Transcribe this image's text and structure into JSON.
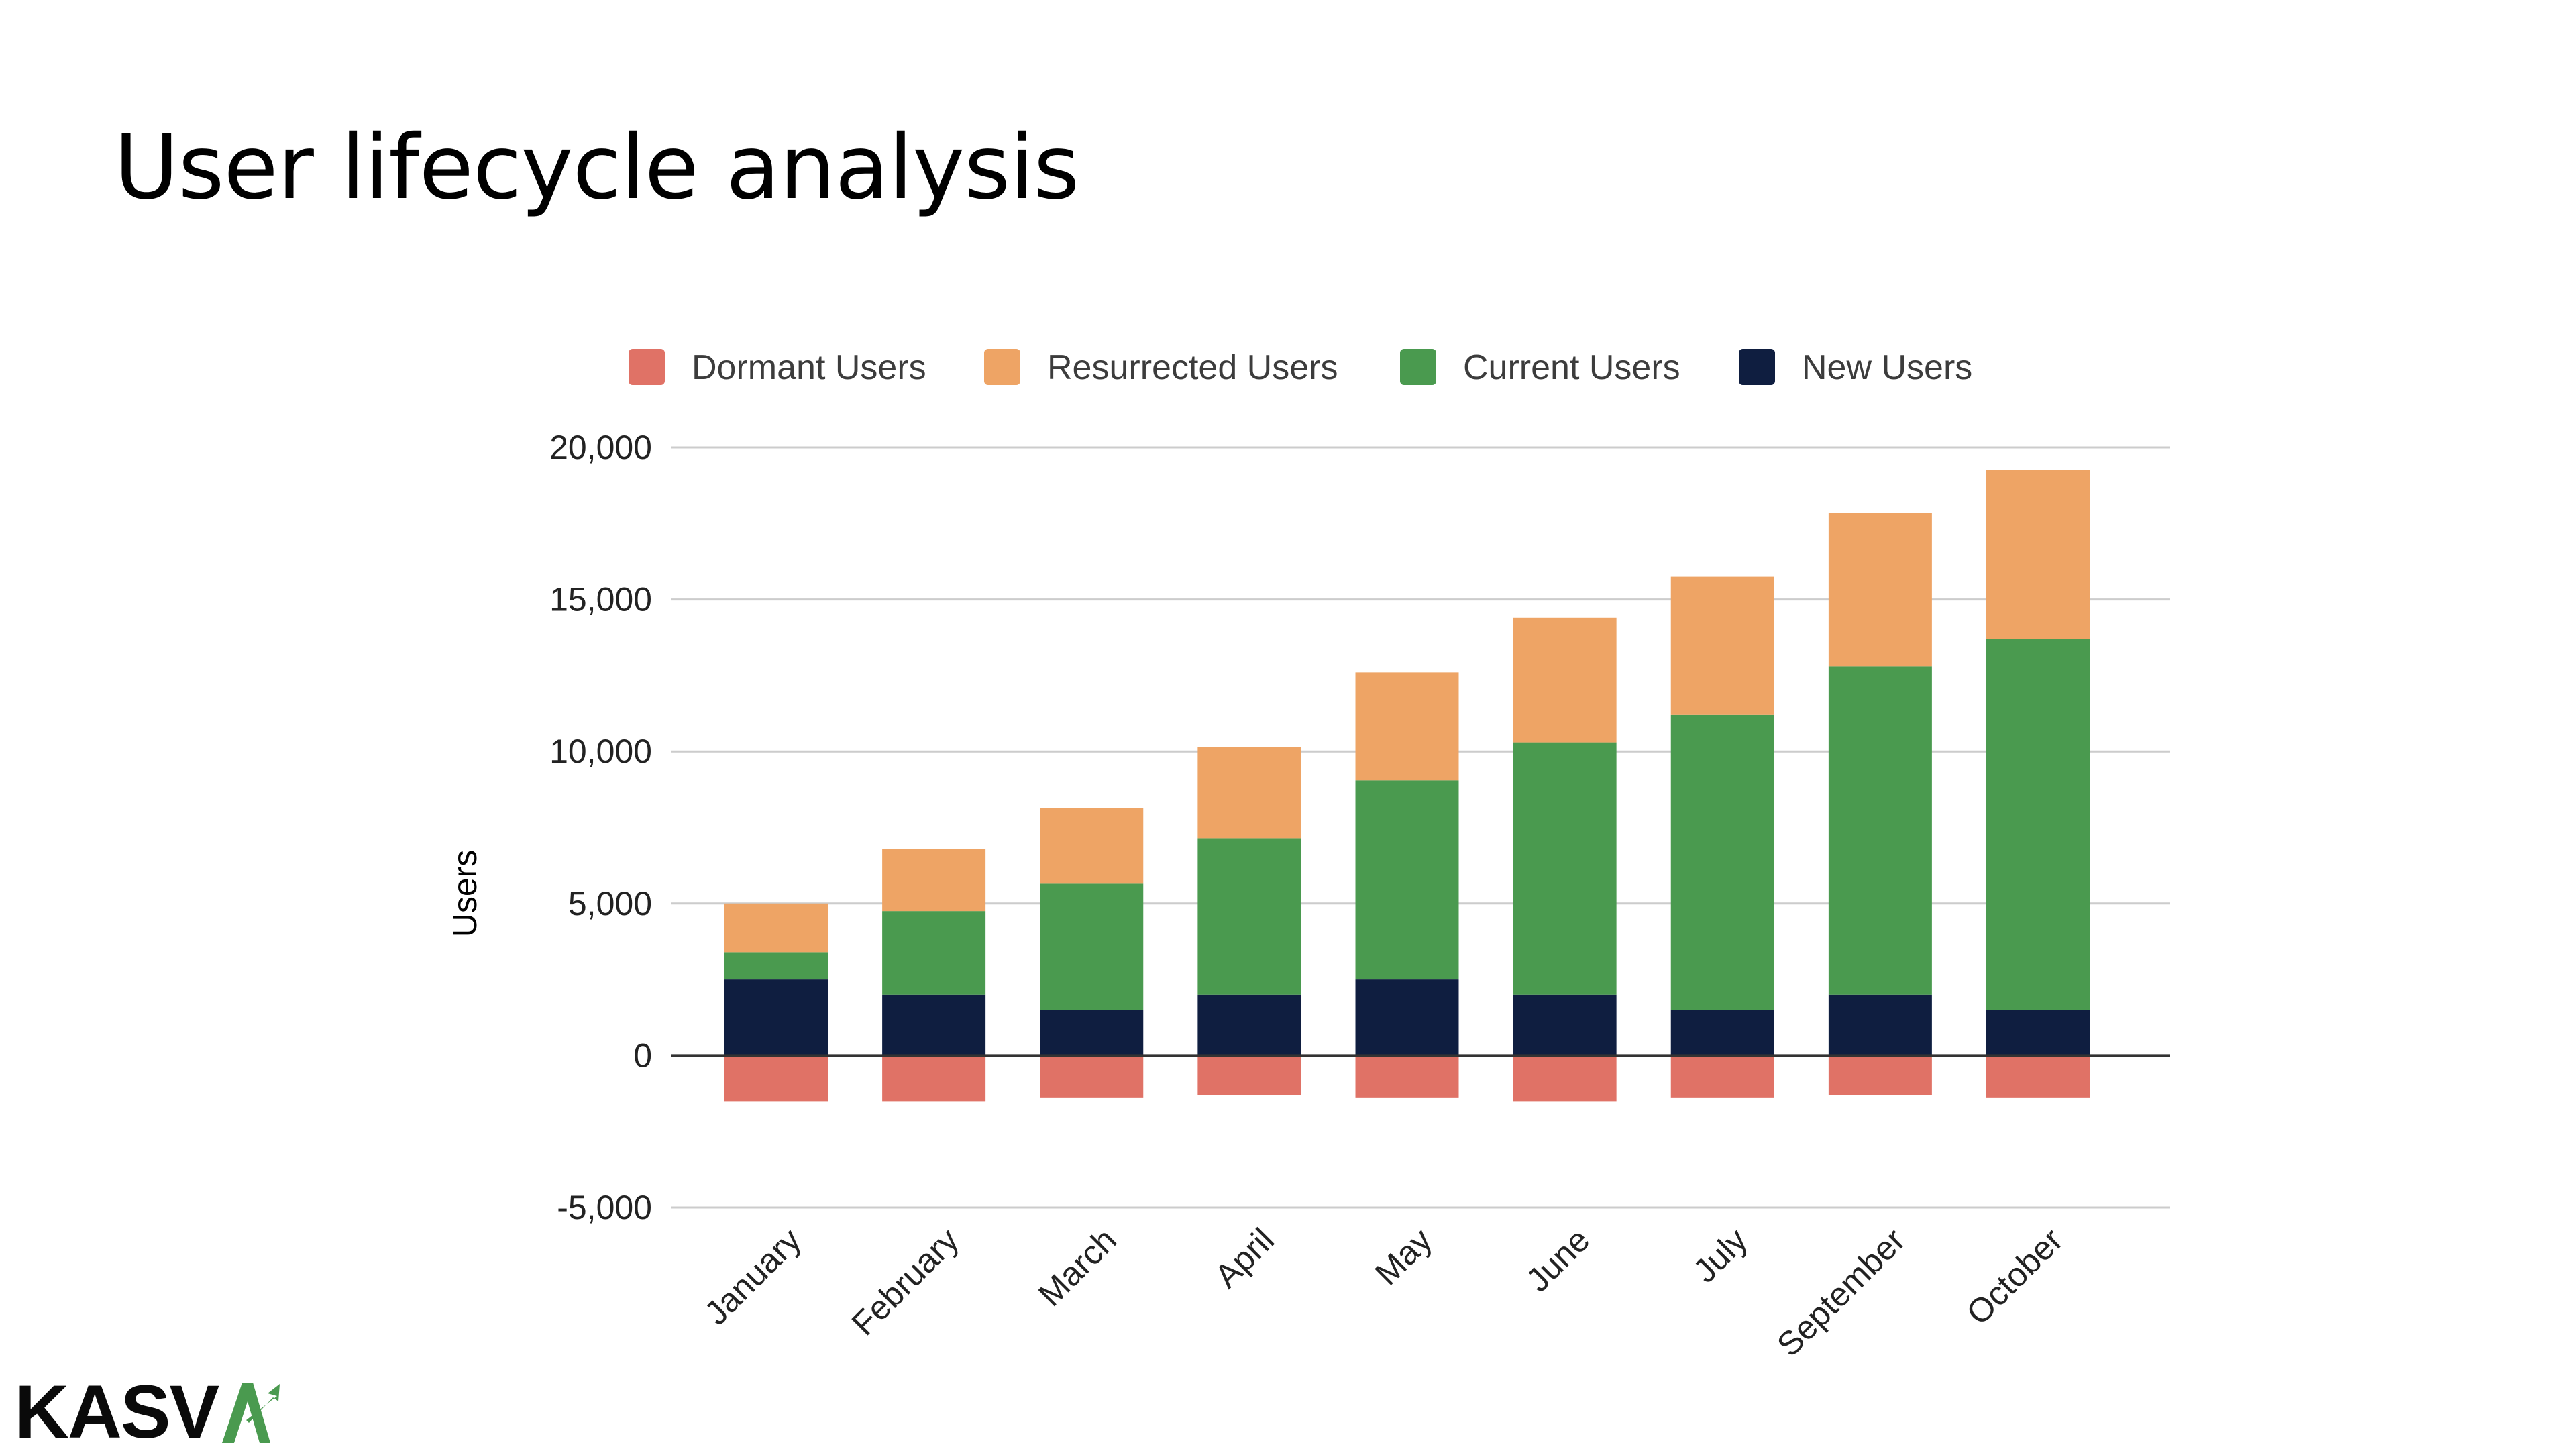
{
  "title": "User lifecycle analysis",
  "logo": {
    "text": "KASV",
    "mark_icon": "arrow-a-logo-mark",
    "mark_color": "#4a9a4f"
  },
  "chart_data": {
    "type": "bar",
    "stacked": true,
    "categories": [
      "January",
      "February",
      "March",
      "April",
      "May",
      "June",
      "July",
      "September",
      "October"
    ],
    "series": [
      {
        "name": "New Users",
        "color": "#0f1e40",
        "values": [
          2500,
          2000,
          1500,
          2000,
          2500,
          2000,
          1500,
          2000,
          1500
        ]
      },
      {
        "name": "Current Users",
        "color": "#4a9a4f",
        "values": [
          900,
          2750,
          4150,
          5150,
          6550,
          8300,
          9700,
          10800,
          12200
        ]
      },
      {
        "name": "Resurrected Users",
        "color": "#eea465",
        "values": [
          1600,
          2050,
          2500,
          3000,
          3550,
          4100,
          4550,
          5050,
          5550
        ]
      },
      {
        "name": "Dormant Users",
        "color": "#e07266",
        "values": [
          -1500,
          -1500,
          -1400,
          -1300,
          -1400,
          -1500,
          -1400,
          -1300,
          -1400
        ]
      }
    ],
    "legend_order": [
      "Dormant Users",
      "Resurrected Users",
      "Current Users",
      "New Users"
    ],
    "legend_position": "top",
    "ylabel": "Users",
    "xlabel": "",
    "ylim": [
      -5000,
      20000
    ],
    "yticks": [
      -5000,
      0,
      5000,
      10000,
      15000,
      20000
    ],
    "ytick_labels": [
      "-5,000",
      "0",
      "5,000",
      "10,000",
      "15,000",
      "20,000"
    ],
    "grid": true,
    "grid_color": "#cccccc",
    "zero_line_color": "#333333"
  }
}
